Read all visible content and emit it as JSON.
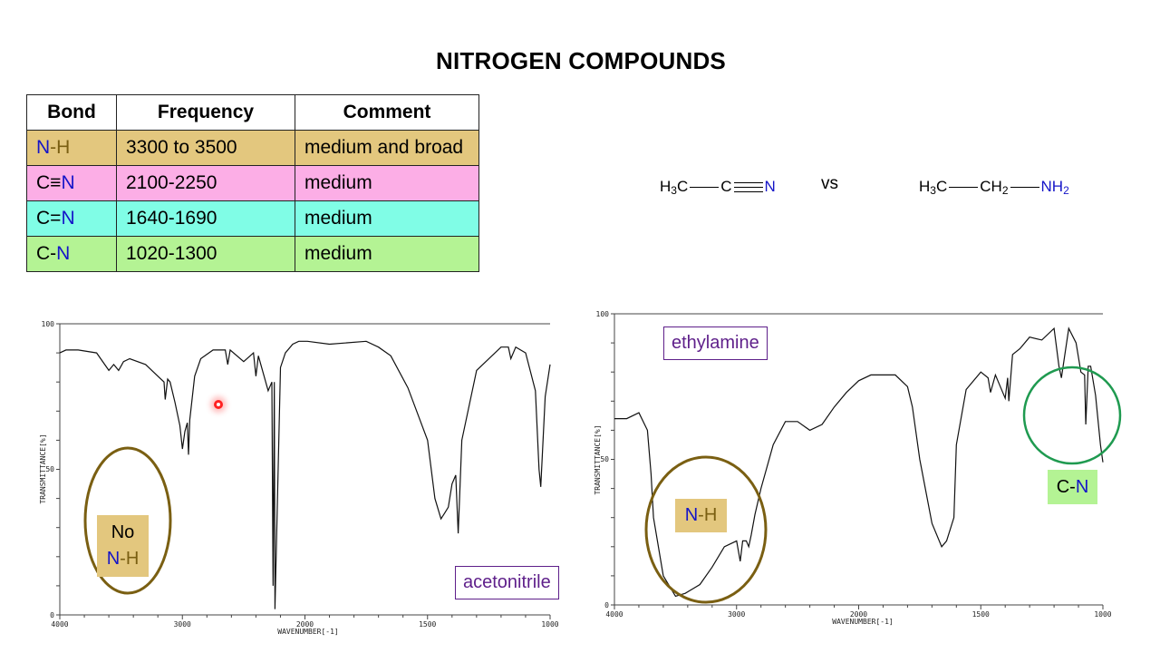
{
  "page": {
    "title": "NITROGEN COMPOUNDS",
    "vs_label": "vs"
  },
  "table": {
    "headers": [
      "Bond",
      "Frequency",
      "Comment"
    ],
    "rows": [
      {
        "bond_a": "N",
        "bond_sep": "-",
        "bond_b": "H",
        "frequency": "3300 to 3500",
        "comment": "medium and broad",
        "color": "#e3c77e"
      },
      {
        "bond_a": "C",
        "bond_sep": "≡",
        "bond_b": "N",
        "frequency": "2100-2250",
        "comment": "medium",
        "color": "#fcaee6"
      },
      {
        "bond_a": "C",
        "bond_sep": "=",
        "bond_b": "N",
        "frequency": "1640-1690",
        "comment": "medium",
        "color": "#80fde6"
      },
      {
        "bond_a": "C",
        "bond_sep": "-",
        "bond_b": "N",
        "frequency": "1020-1300",
        "comment": "medium",
        "color": "#b4f394"
      }
    ]
  },
  "molecules": {
    "acetonitrile": {
      "h3c": "H",
      "h3c_sub": "3",
      "h3c_c": "C",
      "c": "C",
      "n": "N"
    },
    "ethylamine": {
      "h3c": "H",
      "h3c_sub": "3",
      "h3c_c": "C",
      "ch2": "CH",
      "ch2_sub": "2",
      "nh2": "NH",
      "nh2_sub": "2"
    }
  },
  "annotations": {
    "acetonitrile_label": "acetonitrile",
    "ethylamine_label": "ethylamine",
    "no_nh_line1": "No",
    "no_nh_n": "N",
    "no_nh_sep": "-",
    "no_nh_h": "H",
    "nh_n": "N",
    "nh_sep": "-",
    "nh_h": "H",
    "cn_c": "C",
    "cn_sep": "-",
    "cn_n": "N"
  },
  "colors": {
    "nitrogen_blue": "#1515c8",
    "olive": "#7a5f12",
    "label_purple": "#5e1f8a",
    "circle_green": "#1f9a50",
    "nh_tan": "#e3c77e",
    "cn_green": "#b4f394"
  },
  "chart_data": [
    {
      "type": "line",
      "title": "acetonitrile",
      "xlabel": "WAVENUMBER[-1]",
      "ylabel": "TRANSMITTANCE[%]",
      "xlim": [
        4000,
        1000
      ],
      "ylim": [
        0,
        100
      ],
      "x_ticks": [
        "4000",
        "3000",
        "2000",
        "1500",
        "1000"
      ],
      "y_ticks": [
        "0",
        "50",
        "100"
      ],
      "grid": false,
      "x": [
        4000,
        3950,
        3850,
        3700,
        3600,
        3560,
        3520,
        3480,
        3430,
        3300,
        3200,
        3150,
        3140,
        3120,
        3100,
        3060,
        3020,
        3000,
        2980,
        2960,
        2950,
        2940,
        2900,
        2850,
        2750,
        2650,
        2630,
        2610,
        2500,
        2420,
        2400,
        2380,
        2300,
        2270,
        2260,
        2250,
        2245,
        2200,
        2160,
        2100,
        2050,
        1990,
        1900,
        1750,
        1700,
        1650,
        1580,
        1500,
        1470,
        1445,
        1430,
        1415,
        1400,
        1385,
        1375,
        1360,
        1300,
        1200,
        1170,
        1160,
        1140,
        1100,
        1060,
        1045,
        1038,
        1020,
        1000
      ],
      "values": [
        90,
        91,
        91,
        90,
        84,
        86,
        84,
        87,
        88,
        86,
        82,
        80,
        74,
        81,
        80,
        73,
        65,
        57,
        63,
        66,
        55,
        67,
        82,
        88,
        91,
        91,
        86,
        91,
        87,
        90,
        82,
        89,
        77,
        80,
        10,
        80,
        2,
        85,
        90,
        93,
        94,
        94,
        93,
        94,
        92,
        89,
        78,
        60,
        40,
        33,
        35,
        37,
        45,
        48,
        28,
        60,
        84,
        92,
        92,
        88,
        92,
        90,
        77,
        50,
        44,
        75,
        86
      ]
    },
    {
      "type": "line",
      "title": "ethylamine",
      "xlabel": "WAVENUMBER[-1]",
      "ylabel": "TRANSMITTANCE[%]",
      "xlim": [
        4000,
        1000
      ],
      "ylim": [
        0,
        100
      ],
      "x_ticks": [
        "4000",
        "3000",
        "2000",
        "1500",
        "1000"
      ],
      "y_ticks": [
        "0",
        "50",
        "100"
      ],
      "grid": false,
      "x": [
        4000,
        3900,
        3800,
        3730,
        3700,
        3680,
        3600,
        3500,
        3420,
        3300,
        3200,
        3100,
        3000,
        2970,
        2950,
        2920,
        2900,
        2880,
        2850,
        2800,
        2700,
        2600,
        2500,
        2400,
        2300,
        2200,
        2100,
        2000,
        1950,
        1850,
        1800,
        1780,
        1750,
        1700,
        1660,
        1640,
        1610,
        1600,
        1560,
        1500,
        1470,
        1460,
        1440,
        1420,
        1400,
        1390,
        1385,
        1370,
        1340,
        1300,
        1250,
        1200,
        1180,
        1170,
        1140,
        1110,
        1090,
        1075,
        1070,
        1060,
        1050,
        1030,
        1010,
        1000
      ],
      "values": [
        64,
        64,
        66,
        60,
        45,
        30,
        10,
        3,
        4,
        7,
        13,
        20,
        22,
        15,
        22,
        22,
        20,
        24,
        31,
        40,
        55,
        63,
        63,
        60,
        62,
        68,
        73,
        77,
        79,
        79,
        75,
        68,
        50,
        28,
        20,
        22,
        30,
        55,
        74,
        80,
        78,
        73,
        79,
        75,
        71,
        78,
        70,
        86,
        88,
        92,
        91,
        95,
        82,
        78,
        95,
        90,
        80,
        79,
        62,
        82,
        82,
        72,
        55,
        49
      ]
    }
  ]
}
